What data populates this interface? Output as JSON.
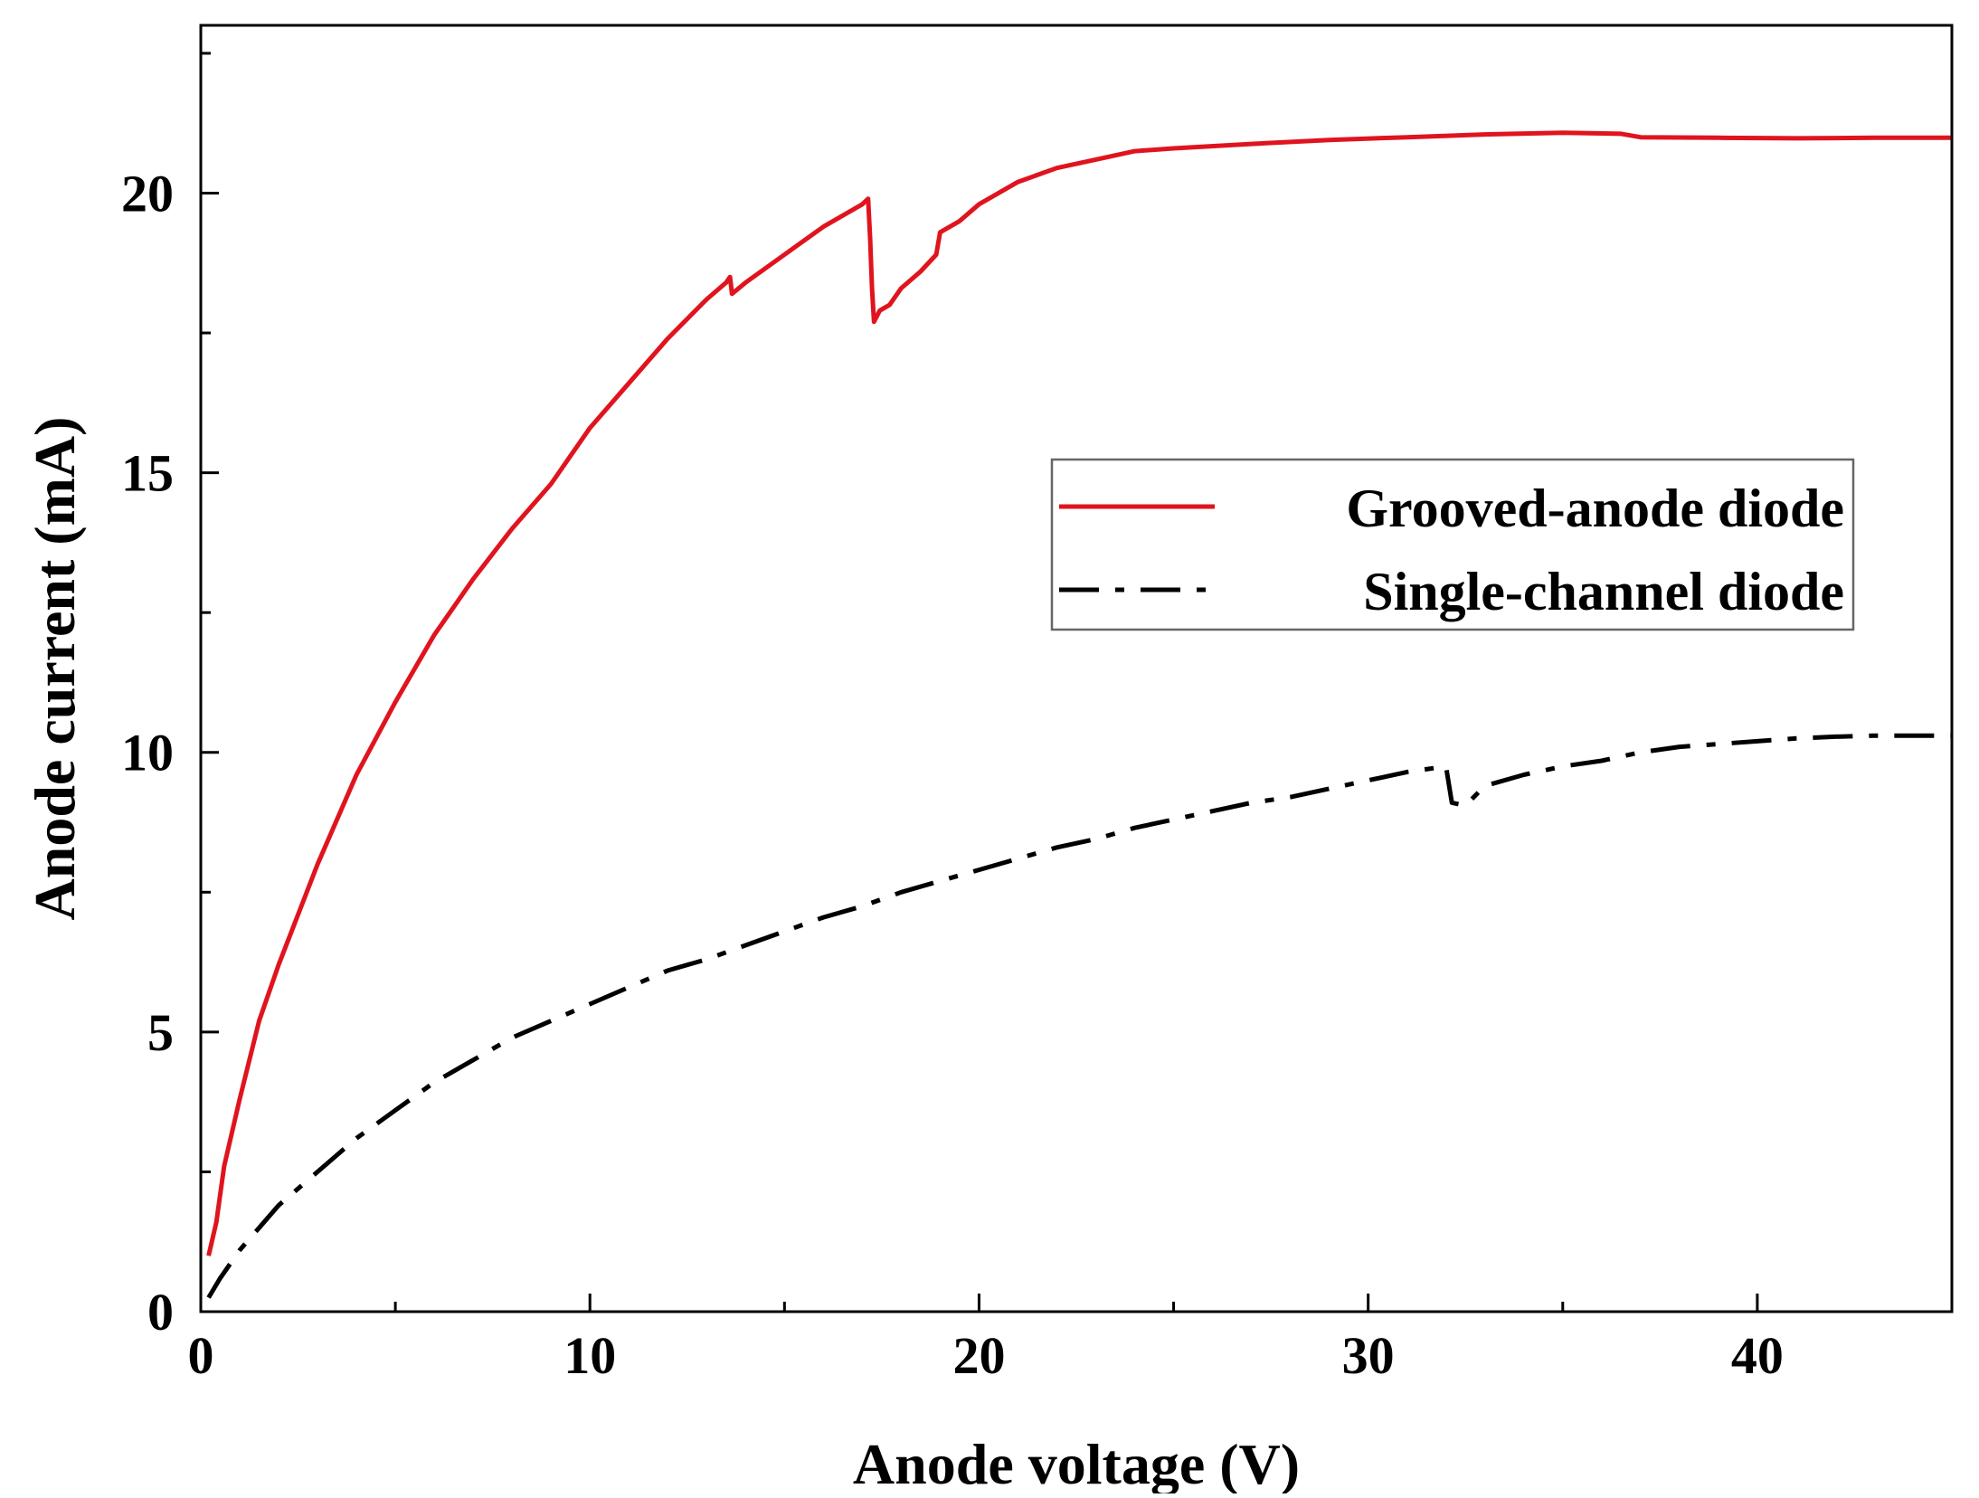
{
  "chart_data": {
    "type": "line",
    "title": "",
    "xlabel": "Anode voltage (V)",
    "ylabel": "Anode current (mA)",
    "xlim": [
      0,
      45
    ],
    "ylim": [
      0,
      23
    ],
    "xticks": [
      0,
      10,
      20,
      30,
      40
    ],
    "xtick_labels": [
      "0",
      "10",
      "20",
      "30",
      "40"
    ],
    "xminor": [
      5,
      15,
      25,
      35
    ],
    "yticks": [
      0,
      5,
      10,
      15,
      20
    ],
    "ytick_labels": [
      "0",
      "5",
      "10",
      "15",
      "20"
    ],
    "yminor": [
      2.5,
      7.5,
      12.5,
      17.5,
      22.5
    ],
    "grid": false,
    "legend_position": "center-right",
    "series": [
      {
        "name": "Grooved-anode diode",
        "color": "#e0141e",
        "style": "solid",
        "points": [
          [
            0.2,
            1.0
          ],
          [
            0.4,
            1.6
          ],
          [
            0.6,
            2.6
          ],
          [
            1.0,
            3.8
          ],
          [
            1.5,
            5.2
          ],
          [
            2.0,
            6.2
          ],
          [
            3.0,
            8.0
          ],
          [
            4.0,
            9.6
          ],
          [
            5.0,
            10.9
          ],
          [
            6.0,
            12.1
          ],
          [
            7.0,
            13.1
          ],
          [
            8.0,
            14.0
          ],
          [
            9.0,
            14.8
          ],
          [
            10.0,
            15.8
          ],
          [
            11.0,
            16.6
          ],
          [
            12.0,
            17.4
          ],
          [
            13.0,
            18.1
          ],
          [
            13.5,
            18.4
          ],
          [
            13.6,
            18.5
          ],
          [
            13.65,
            18.2
          ],
          [
            14.0,
            18.4
          ],
          [
            15.0,
            18.9
          ],
          [
            16.0,
            19.4
          ],
          [
            17.0,
            19.8
          ],
          [
            17.15,
            19.9
          ],
          [
            17.2,
            19.2
          ],
          [
            17.25,
            18.3
          ],
          [
            17.3,
            17.7
          ],
          [
            17.45,
            17.9
          ],
          [
            17.7,
            18.0
          ],
          [
            18.0,
            18.3
          ],
          [
            18.5,
            18.6
          ],
          [
            18.9,
            18.9
          ],
          [
            19.0,
            19.3
          ],
          [
            19.5,
            19.5
          ],
          [
            20.0,
            19.8
          ],
          [
            21.0,
            20.2
          ],
          [
            22.0,
            20.45
          ],
          [
            23.0,
            20.6
          ],
          [
            24.0,
            20.75
          ],
          [
            25.0,
            20.8
          ],
          [
            27.0,
            20.88
          ],
          [
            29.0,
            20.95
          ],
          [
            31.0,
            21.0
          ],
          [
            33.0,
            21.05
          ],
          [
            35.0,
            21.08
          ],
          [
            36.5,
            21.06
          ],
          [
            37.0,
            21.0
          ],
          [
            39.0,
            20.99
          ],
          [
            41.0,
            20.98
          ],
          [
            43.0,
            20.99
          ],
          [
            45.0,
            20.99
          ]
        ]
      },
      {
        "name": "Single-channel diode",
        "color": "#000000",
        "style": "dashdot",
        "points": [
          [
            0.2,
            0.25
          ],
          [
            0.5,
            0.6
          ],
          [
            1.0,
            1.1
          ],
          [
            1.5,
            1.5
          ],
          [
            2.0,
            1.9
          ],
          [
            3.0,
            2.5
          ],
          [
            4.0,
            3.1
          ],
          [
            5.0,
            3.6
          ],
          [
            6.0,
            4.1
          ],
          [
            7.0,
            4.5
          ],
          [
            8.0,
            4.9
          ],
          [
            9.0,
            5.2
          ],
          [
            10.0,
            5.5
          ],
          [
            11.0,
            5.8
          ],
          [
            12.0,
            6.1
          ],
          [
            13.0,
            6.3
          ],
          [
            14.0,
            6.55
          ],
          [
            15.0,
            6.8
          ],
          [
            16.0,
            7.05
          ],
          [
            17.0,
            7.25
          ],
          [
            18.0,
            7.5
          ],
          [
            19.0,
            7.7
          ],
          [
            20.0,
            7.9
          ],
          [
            21.0,
            8.1
          ],
          [
            22.0,
            8.3
          ],
          [
            23.0,
            8.45
          ],
          [
            24.0,
            8.65
          ],
          [
            25.0,
            8.8
          ],
          [
            26.0,
            8.95
          ],
          [
            27.0,
            9.1
          ],
          [
            28.0,
            9.2
          ],
          [
            29.0,
            9.35
          ],
          [
            30.0,
            9.5
          ],
          [
            31.0,
            9.65
          ],
          [
            32.0,
            9.75
          ],
          [
            32.15,
            9.1
          ],
          [
            32.5,
            9.05
          ],
          [
            33.0,
            9.4
          ],
          [
            34.0,
            9.6
          ],
          [
            35.0,
            9.75
          ],
          [
            36.0,
            9.85
          ],
          [
            37.0,
            10.0
          ],
          [
            38.0,
            10.1
          ],
          [
            39.0,
            10.15
          ],
          [
            40.0,
            10.2
          ],
          [
            41.0,
            10.25
          ],
          [
            42.0,
            10.28
          ],
          [
            43.0,
            10.3
          ],
          [
            45.0,
            10.3
          ]
        ]
      }
    ]
  }
}
